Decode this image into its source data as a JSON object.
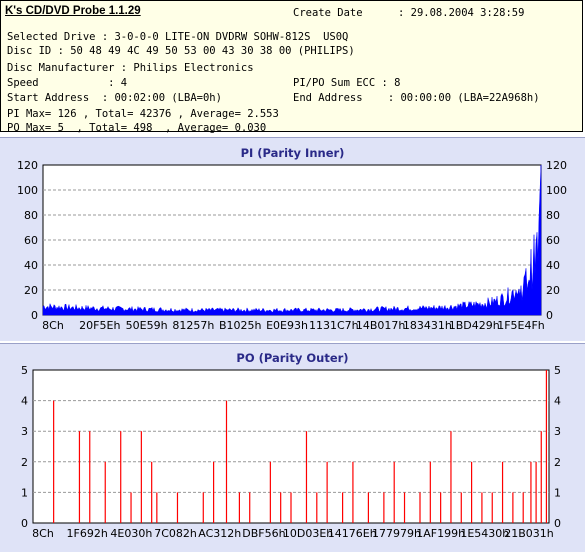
{
  "app_title": "K's CD/DVD Probe 1.1.29",
  "create_date_label": "Create Date",
  "create_date_value": ": 29.08.2004 3:28:59",
  "lines": {
    "selected_drive": "Selected Drive : 3-0-0-0 LITE-ON DVDRW SOHW-812S  US0Q",
    "disc_id": "Disc ID : 50 48 49 4C 49 50 53 00 43 30 38 00 (PHILIPS)",
    "manufacturer": "Disc Manufacturer : Philips Electronics",
    "speed": "Speed           : 4",
    "pipo_sum": "PI/PO Sum ECC : 8",
    "start_address": "Start Address  : 00:02:00 (LBA=0h)",
    "end_address": "End Address    : 00:00:00 (LBA=22A968h)",
    "pi_max": "PI Max= 126 , Total= 42376 , Average= 2.553",
    "po_max": "PO Max= 5  , Total= 498  , Average= 0.030"
  },
  "colors": {
    "bar": "#0000ff",
    "po_bar": "#ff0000",
    "panel_bg": "#dfe3f7",
    "plot_bg": "#ffffff",
    "info_bg": "#ffffe7",
    "title": "#2a2a88"
  },
  "chart_data": [
    {
      "type": "bar",
      "title": "PI (Parity Inner)",
      "ylim": [
        0,
        120
      ],
      "yticks": [
        0,
        20,
        40,
        60,
        80,
        100,
        120
      ],
      "grid": true,
      "xlabels": [
        "8Ch",
        "20F5Eh",
        "50E59h",
        "81257h",
        "B1025h",
        "E0E93h",
        "1131C7h",
        "14B017h",
        "183431h",
        "1BD429h",
        "1F5E4Fh"
      ],
      "profile": [
        {
          "x": 0.0,
          "y": 7
        },
        {
          "x": 0.05,
          "y": 6
        },
        {
          "x": 0.15,
          "y": 5
        },
        {
          "x": 0.3,
          "y": 4
        },
        {
          "x": 0.45,
          "y": 4
        },
        {
          "x": 0.6,
          "y": 4
        },
        {
          "x": 0.7,
          "y": 5
        },
        {
          "x": 0.8,
          "y": 6
        },
        {
          "x": 0.86,
          "y": 8
        },
        {
          "x": 0.9,
          "y": 10
        },
        {
          "x": 0.93,
          "y": 14
        },
        {
          "x": 0.955,
          "y": 22
        },
        {
          "x": 0.97,
          "y": 35
        },
        {
          "x": 0.985,
          "y": 55
        },
        {
          "x": 0.995,
          "y": 70
        },
        {
          "x": 1.0,
          "y": 126
        }
      ]
    },
    {
      "type": "bar",
      "title": "PO (Parity Outer)",
      "ylim": [
        0,
        5
      ],
      "yticks": [
        0,
        1,
        2,
        3,
        4,
        5
      ],
      "grid": true,
      "xlabels": [
        "8Ch",
        "1F692h",
        "4E030h",
        "7C082h",
        "AC312h",
        "DBF56h",
        "10D03Eh",
        "14176Eh",
        "177979h",
        "1AF199h",
        "1E5430h",
        "21B031h"
      ],
      "spikes": [
        {
          "x": 0.04,
          "y": 4
        },
        {
          "x": 0.09,
          "y": 3
        },
        {
          "x": 0.11,
          "y": 3
        },
        {
          "x": 0.14,
          "y": 2
        },
        {
          "x": 0.17,
          "y": 3
        },
        {
          "x": 0.19,
          "y": 1
        },
        {
          "x": 0.21,
          "y": 3
        },
        {
          "x": 0.23,
          "y": 2
        },
        {
          "x": 0.24,
          "y": 1
        },
        {
          "x": 0.28,
          "y": 1
        },
        {
          "x": 0.33,
          "y": 1
        },
        {
          "x": 0.35,
          "y": 2
        },
        {
          "x": 0.375,
          "y": 4
        },
        {
          "x": 0.4,
          "y": 1
        },
        {
          "x": 0.42,
          "y": 1
        },
        {
          "x": 0.46,
          "y": 2
        },
        {
          "x": 0.48,
          "y": 1
        },
        {
          "x": 0.5,
          "y": 1
        },
        {
          "x": 0.53,
          "y": 3
        },
        {
          "x": 0.55,
          "y": 1
        },
        {
          "x": 0.57,
          "y": 2
        },
        {
          "x": 0.6,
          "y": 1
        },
        {
          "x": 0.62,
          "y": 2
        },
        {
          "x": 0.65,
          "y": 1
        },
        {
          "x": 0.68,
          "y": 1
        },
        {
          "x": 0.7,
          "y": 2
        },
        {
          "x": 0.72,
          "y": 1
        },
        {
          "x": 0.75,
          "y": 1
        },
        {
          "x": 0.77,
          "y": 2
        },
        {
          "x": 0.79,
          "y": 1
        },
        {
          "x": 0.81,
          "y": 3
        },
        {
          "x": 0.83,
          "y": 1
        },
        {
          "x": 0.85,
          "y": 2
        },
        {
          "x": 0.87,
          "y": 1
        },
        {
          "x": 0.89,
          "y": 1
        },
        {
          "x": 0.91,
          "y": 2
        },
        {
          "x": 0.93,
          "y": 1
        },
        {
          "x": 0.95,
          "y": 1
        },
        {
          "x": 0.965,
          "y": 2
        },
        {
          "x": 0.975,
          "y": 2
        },
        {
          "x": 0.985,
          "y": 3
        },
        {
          "x": 0.995,
          "y": 5
        }
      ]
    }
  ]
}
